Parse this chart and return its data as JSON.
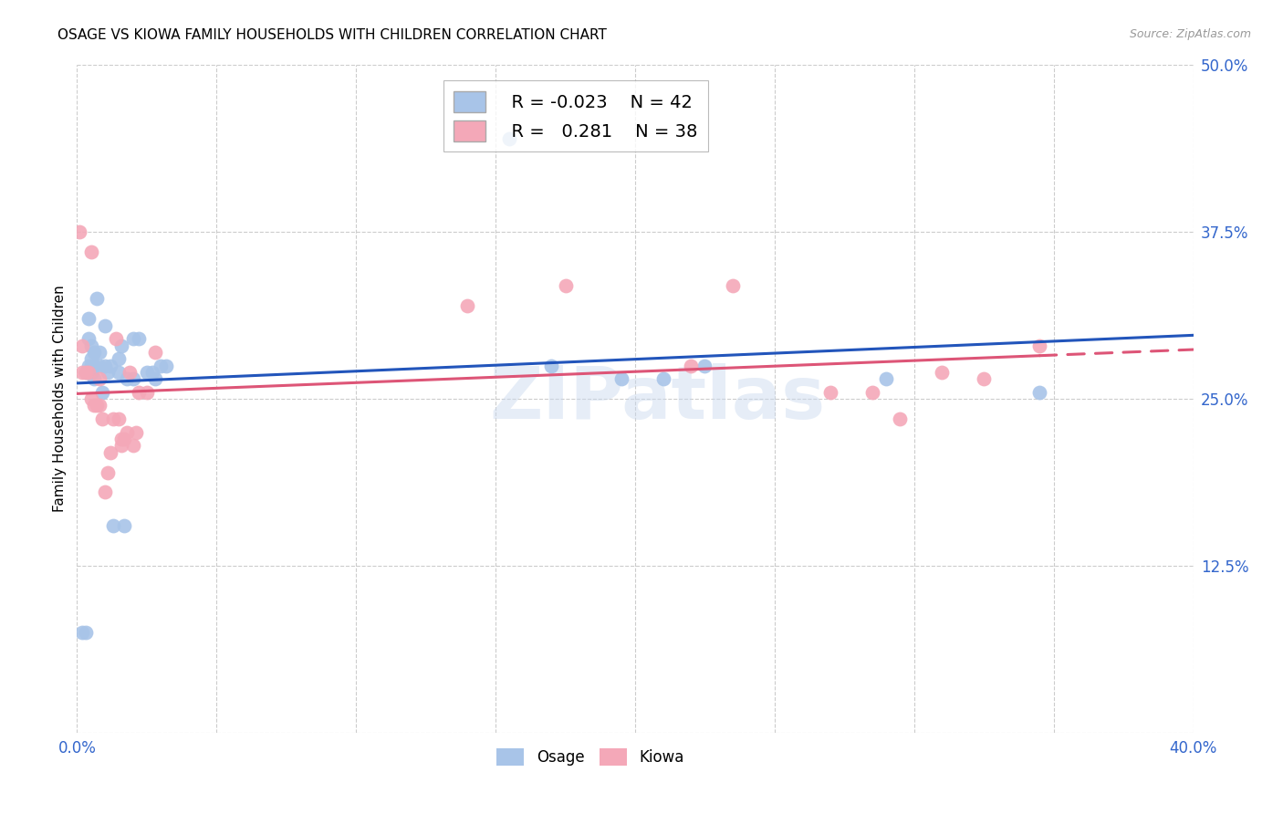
{
  "title": "OSAGE VS KIOWA FAMILY HOUSEHOLDS WITH CHILDREN CORRELATION CHART",
  "source": "Source: ZipAtlas.com",
  "ylabel": "Family Households with Children",
  "xlim": [
    0.0,
    0.4
  ],
  "ylim": [
    0.0,
    0.5
  ],
  "legend_R_osage": "-0.023",
  "legend_N_osage": "42",
  "legend_R_kiowa": "0.281",
  "legend_N_kiowa": "38",
  "osage_color": "#a8c4e8",
  "kiowa_color": "#f4a8b8",
  "osage_line_color": "#2255bb",
  "kiowa_line_color": "#dd5577",
  "osage_x": [
    0.002,
    0.003,
    0.003,
    0.004,
    0.004,
    0.004,
    0.005,
    0.005,
    0.005,
    0.005,
    0.006,
    0.006,
    0.006,
    0.007,
    0.008,
    0.008,
    0.009,
    0.01,
    0.01,
    0.011,
    0.012,
    0.013,
    0.015,
    0.015,
    0.016,
    0.017,
    0.018,
    0.02,
    0.02,
    0.022,
    0.025,
    0.027,
    0.028,
    0.03,
    0.032,
    0.155,
    0.17,
    0.195,
    0.21,
    0.225,
    0.29,
    0.345
  ],
  "osage_y": [
    0.075,
    0.075,
    0.27,
    0.275,
    0.295,
    0.31,
    0.27,
    0.275,
    0.28,
    0.29,
    0.265,
    0.275,
    0.285,
    0.325,
    0.275,
    0.285,
    0.255,
    0.275,
    0.305,
    0.27,
    0.275,
    0.155,
    0.27,
    0.28,
    0.29,
    0.155,
    0.265,
    0.265,
    0.295,
    0.295,
    0.27,
    0.27,
    0.265,
    0.275,
    0.275,
    0.445,
    0.275,
    0.265,
    0.265,
    0.275,
    0.265,
    0.255
  ],
  "kiowa_x": [
    0.001,
    0.002,
    0.002,
    0.003,
    0.004,
    0.005,
    0.005,
    0.006,
    0.007,
    0.008,
    0.008,
    0.009,
    0.01,
    0.011,
    0.012,
    0.013,
    0.014,
    0.015,
    0.016,
    0.016,
    0.017,
    0.018,
    0.019,
    0.02,
    0.021,
    0.022,
    0.025,
    0.028,
    0.14,
    0.175,
    0.22,
    0.235,
    0.27,
    0.285,
    0.295,
    0.31,
    0.325,
    0.345
  ],
  "kiowa_y": [
    0.375,
    0.27,
    0.29,
    0.27,
    0.27,
    0.36,
    0.25,
    0.245,
    0.245,
    0.245,
    0.265,
    0.235,
    0.18,
    0.195,
    0.21,
    0.235,
    0.295,
    0.235,
    0.215,
    0.22,
    0.22,
    0.225,
    0.27,
    0.215,
    0.225,
    0.255,
    0.255,
    0.285,
    0.32,
    0.335,
    0.275,
    0.335,
    0.255,
    0.255,
    0.235,
    0.27,
    0.265,
    0.29
  ]
}
